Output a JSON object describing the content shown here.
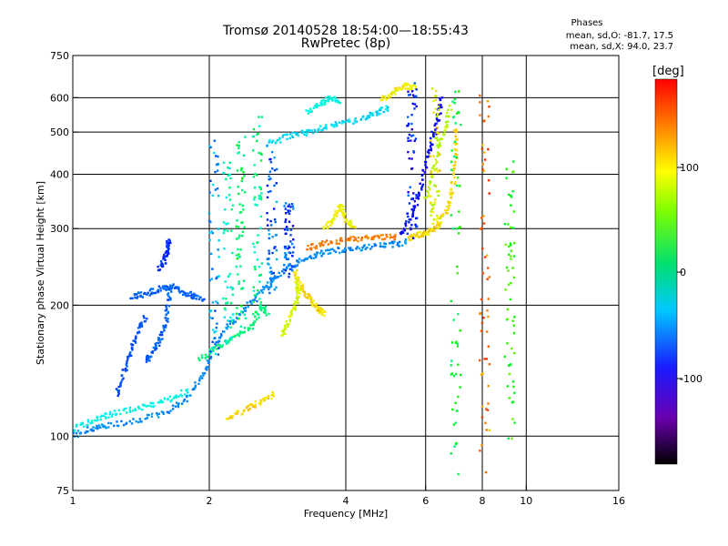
{
  "header": {
    "title_line1": "Tromsø 20140528  18:54:00—18:55:43",
    "title_line2": "RwPretec (8p)"
  },
  "phase_box": {
    "heading": "Phases",
    "line_o": "mean, sd,O: -81.7, 17.5",
    "line_x": "mean, sd,X:  94.0, 23.7"
  },
  "colorbar": {
    "unit": "[deg]",
    "ticks": [
      "100",
      "0",
      "-100"
    ]
  },
  "chart_data": {
    "type": "scatter",
    "xlabel": "Frequency [MHz]",
    "ylabel": "Stationary phase Virtual Height [km]",
    "x_scale": "log",
    "y_scale": "log",
    "xlim": [
      1,
      16
    ],
    "ylim": [
      75,
      750
    ],
    "x_ticks": [
      "1",
      "2",
      "4",
      "6",
      "8",
      "10",
      "16"
    ],
    "y_ticks": [
      "75",
      "100",
      "200",
      "300",
      "400",
      "500",
      "600",
      "750"
    ],
    "x_grid": [
      2,
      4,
      6,
      8,
      10
    ],
    "y_grid": [
      100,
      200,
      300,
      400,
      500,
      600
    ],
    "color_scale": "phase in degrees, rainbow colormap from about -180 (black) to 180 (red)",
    "traces": [
      {
        "points": [
          [
            1.0,
            100
          ],
          [
            1.1,
            104
          ],
          [
            1.2,
            106
          ],
          [
            1.4,
            109
          ],
          [
            1.6,
            113
          ],
          [
            1.8,
            123
          ],
          [
            1.95,
            140
          ],
          [
            2.05,
            160
          ],
          [
            2.2,
            180
          ],
          [
            2.4,
            195
          ],
          [
            2.6,
            215
          ],
          [
            2.8,
            232
          ],
          [
            3.0,
            245
          ],
          [
            3.3,
            258
          ],
          [
            3.6,
            265
          ],
          [
            4.0,
            269
          ],
          [
            4.5,
            272
          ],
          [
            5.0,
            275
          ],
          [
            5.5,
            280
          ]
        ],
        "phase": -95
      },
      {
        "points": [
          [
            1.0,
            104
          ],
          [
            1.1,
            108
          ],
          [
            1.2,
            112
          ],
          [
            1.35,
            115
          ],
          [
            1.5,
            118
          ],
          [
            1.65,
            122
          ],
          [
            1.8,
            128
          ]
        ],
        "phase": -55
      },
      {
        "points": [
          [
            1.25,
            125
          ],
          [
            1.3,
            140
          ],
          [
            1.35,
            160
          ],
          [
            1.4,
            175
          ],
          [
            1.45,
            190
          ]
        ],
        "phase": -115
      },
      {
        "points": [
          [
            1.45,
            150
          ],
          [
            1.5,
            155
          ],
          [
            1.55,
            165
          ],
          [
            1.6,
            180
          ],
          [
            1.62,
            200
          ],
          [
            1.65,
            225
          ]
        ],
        "phase": -110
      },
      {
        "points": [
          [
            1.35,
            210
          ],
          [
            1.45,
            212
          ],
          [
            1.55,
            218
          ],
          [
            1.65,
            222
          ],
          [
            1.75,
            215
          ],
          [
            1.85,
            210
          ],
          [
            1.95,
            205
          ]
        ],
        "phase": -110
      },
      {
        "points": [
          [
            1.55,
            240
          ],
          [
            1.6,
            255
          ],
          [
            1.62,
            270
          ],
          [
            1.63,
            280
          ]
        ],
        "phase": -125
      },
      {
        "points": [
          [
            3.3,
            270
          ],
          [
            3.6,
            278
          ],
          [
            4.0,
            282
          ],
          [
            4.4,
            285
          ],
          [
            4.8,
            286
          ],
          [
            5.2,
            287
          ]
        ],
        "phase": 140
      },
      {
        "points": [
          [
            5.5,
            285
          ],
          [
            5.8,
            290
          ],
          [
            6.1,
            295
          ],
          [
            6.4,
            305
          ],
          [
            6.7,
            330
          ],
          [
            6.9,
            380
          ],
          [
            7.0,
            450
          ],
          [
            7.0,
            520
          ]
        ],
        "phase": 110
      },
      {
        "points": [
          [
            5.3,
            290
          ],
          [
            5.6,
            320
          ],
          [
            5.8,
            360
          ],
          [
            6.0,
            420
          ],
          [
            6.2,
            480
          ],
          [
            6.4,
            540
          ],
          [
            6.5,
            600
          ]
        ],
        "phase": -140
      },
      {
        "points": [
          [
            6.0,
            350
          ],
          [
            6.3,
            420
          ],
          [
            6.6,
            500
          ],
          [
            6.8,
            580
          ]
        ],
        "phase": 80
      },
      {
        "points": [
          [
            2.7,
            470
          ],
          [
            3.0,
            490
          ],
          [
            3.3,
            500
          ],
          [
            3.6,
            515
          ],
          [
            4.0,
            525
          ],
          [
            4.4,
            540
          ],
          [
            4.7,
            555
          ],
          [
            5.0,
            570
          ]
        ],
        "phase": -70
      },
      {
        "points": [
          [
            3.3,
            555
          ],
          [
            3.5,
            580
          ],
          [
            3.7,
            600
          ],
          [
            3.9,
            585
          ]
        ],
        "phase": -55
      },
      {
        "points": [
          [
            4.8,
            590
          ],
          [
            5.1,
            620
          ],
          [
            5.4,
            640
          ],
          [
            5.7,
            630
          ]
        ],
        "phase": 100
      },
      {
        "points": [
          [
            3.1,
            240
          ],
          [
            3.2,
            220
          ],
          [
            3.3,
            210
          ],
          [
            3.4,
            200
          ],
          [
            3.5,
            195
          ],
          [
            3.6,
            190
          ]
        ],
        "phase": 110
      },
      {
        "points": [
          [
            2.9,
            170
          ],
          [
            3.0,
            185
          ],
          [
            3.1,
            200
          ],
          [
            3.15,
            215
          ],
          [
            3.1,
            230
          ]
        ],
        "phase": 90
      },
      {
        "points": [
          [
            3.6,
            300
          ],
          [
            3.8,
            320
          ],
          [
            3.9,
            340
          ],
          [
            4.0,
            315
          ],
          [
            4.2,
            300
          ]
        ],
        "phase": 100
      },
      {
        "points": [
          [
            1.9,
            150
          ],
          [
            2.1,
            160
          ],
          [
            2.3,
            170
          ],
          [
            2.5,
            180
          ],
          [
            2.6,
            200
          ],
          [
            2.7,
            190
          ]
        ],
        "phase": -20
      },
      {
        "points": [
          [
            2.2,
            110
          ],
          [
            2.4,
            115
          ],
          [
            2.6,
            120
          ],
          [
            2.8,
            125
          ]
        ],
        "phase": 110
      }
    ],
    "columns": [
      {
        "x": 2.05,
        "y_range": [
          150,
          480
        ],
        "phase": -90
      },
      {
        "x": 2.2,
        "y_range": [
          160,
          450
        ],
        "phase": -40
      },
      {
        "x": 2.35,
        "y_range": [
          170,
          500
        ],
        "phase": -10
      },
      {
        "x": 2.55,
        "y_range": [
          180,
          550
        ],
        "phase": -25
      },
      {
        "x": 2.75,
        "y_range": [
          210,
          470
        ],
        "phase": -110
      },
      {
        "x": 3.0,
        "y_range": [
          230,
          350
        ],
        "phase": -120
      },
      {
        "x": 5.6,
        "y_range": [
          285,
          650
        ],
        "phase": -130
      },
      {
        "x": 6.3,
        "y_range": [
          300,
          640
        ],
        "phase": 95
      },
      {
        "x": 7.0,
        "y_range": [
          80,
          640
        ],
        "phase": 10
      },
      {
        "x": 8.1,
        "y_range": [
          80,
          620
        ],
        "phase": 140
      },
      {
        "x": 9.2,
        "y_range": [
          95,
          450
        ],
        "phase": 30
      }
    ]
  }
}
